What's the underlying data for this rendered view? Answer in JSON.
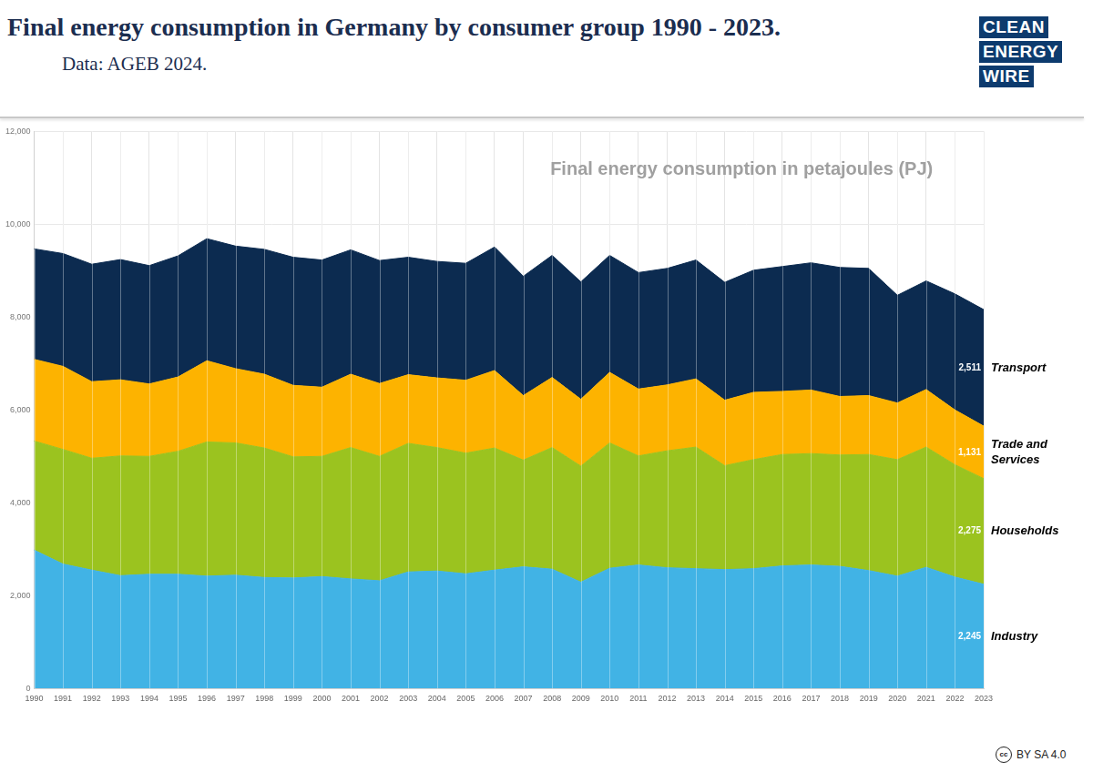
{
  "chart_data": {
    "type": "area",
    "title": "Final energy consumption in Germany by consumer group 1990 - 2023.",
    "subtitle": "Data: AGEB 2024.",
    "annotation": "Final energy consumption in petajoules (PJ)",
    "logo": [
      "CLEAN",
      "ENERGY",
      "WIRE"
    ],
    "license_icon": "cc",
    "license": "BY SA 4.0",
    "categories": [
      "1990",
      "1991",
      "1992",
      "1993",
      "1994",
      "1995",
      "1996",
      "1997",
      "1998",
      "1999",
      "2000",
      "2001",
      "2002",
      "2003",
      "2004",
      "2005",
      "2006",
      "2007",
      "2008",
      "2009",
      "2010",
      "2011",
      "2012",
      "2013",
      "2014",
      "2015",
      "2016",
      "2017",
      "2018",
      "2019",
      "2020",
      "2021",
      "2022",
      "2023"
    ],
    "ylim": [
      0,
      12000
    ],
    "yticks": [
      0,
      {
        "value": 2000,
        "label": "2,000"
      },
      {
        "value": 4000,
        "label": "4,000"
      },
      {
        "value": 6000,
        "label": "6,000"
      },
      {
        "value": 8000,
        "label": "8,000"
      },
      {
        "value": 10000,
        "label": "10,000"
      },
      {
        "value": 12000,
        "label": "12,000"
      }
    ],
    "grid": true,
    "stacked": true,
    "data_labels": true,
    "series": [
      {
        "name": "Industry",
        "color": "#41b3e5",
        "values": [
          2980,
          2680,
          2550,
          2430,
          2460,
          2460,
          2420,
          2440,
          2390,
          2380,
          2410,
          2360,
          2320,
          2510,
          2530,
          2470,
          2550,
          2620,
          2570,
          2290,
          2590,
          2660,
          2600,
          2580,
          2560,
          2580,
          2640,
          2660,
          2630,
          2540,
          2420,
          2610,
          2400,
          2245
        ],
        "value_labels": [
          null,
          null,
          null,
          null,
          null,
          null,
          null,
          null,
          null,
          null,
          null,
          null,
          null,
          null,
          null,
          null,
          null,
          null,
          null,
          null,
          null,
          null,
          null,
          null,
          null,
          null,
          null,
          null,
          null,
          null,
          null,
          null,
          null,
          "2,245"
        ]
      },
      {
        "name": "Households",
        "color": "#9bc31f",
        "values": [
          2350,
          2470,
          2410,
          2580,
          2540,
          2650,
          2890,
          2850,
          2790,
          2610,
          2590,
          2830,
          2680,
          2770,
          2660,
          2600,
          2630,
          2300,
          2620,
          2500,
          2700,
          2350,
          2520,
          2620,
          2240,
          2350,
          2400,
          2400,
          2400,
          2500,
          2510,
          2590,
          2420,
          2275
        ],
        "value_labels": [
          null,
          null,
          null,
          null,
          null,
          null,
          null,
          null,
          null,
          null,
          null,
          null,
          null,
          null,
          null,
          null,
          null,
          null,
          null,
          null,
          null,
          null,
          null,
          null,
          null,
          null,
          null,
          null,
          null,
          null,
          null,
          null,
          null,
          "2,275"
        ]
      },
      {
        "name": "Trade and Services",
        "color": "#fdb300",
        "values": [
          1760,
          1790,
          1650,
          1640,
          1560,
          1600,
          1750,
          1600,
          1590,
          1540,
          1490,
          1580,
          1570,
          1480,
          1500,
          1570,
          1670,
          1390,
          1510,
          1440,
          1520,
          1440,
          1420,
          1470,
          1410,
          1450,
          1360,
          1370,
          1260,
          1270,
          1220,
          1240,
          1180,
          1131
        ],
        "value_labels": [
          null,
          null,
          null,
          null,
          null,
          null,
          null,
          null,
          null,
          null,
          null,
          null,
          null,
          null,
          null,
          null,
          null,
          null,
          null,
          null,
          null,
          null,
          null,
          null,
          null,
          null,
          null,
          null,
          null,
          null,
          null,
          null,
          null,
          "1,131"
        ]
      },
      {
        "name": "Transport",
        "color": "#0c2b50",
        "values": [
          2380,
          2430,
          2530,
          2590,
          2550,
          2610,
          2630,
          2640,
          2690,
          2760,
          2740,
          2680,
          2650,
          2530,
          2510,
          2520,
          2660,
          2570,
          2630,
          2530,
          2520,
          2510,
          2510,
          2560,
          2540,
          2630,
          2690,
          2740,
          2780,
          2740,
          2320,
          2340,
          2500,
          2511
        ],
        "value_labels": [
          null,
          null,
          null,
          null,
          null,
          null,
          null,
          null,
          null,
          null,
          null,
          null,
          null,
          null,
          null,
          null,
          null,
          null,
          null,
          null,
          null,
          null,
          null,
          null,
          null,
          null,
          null,
          null,
          null,
          null,
          null,
          null,
          null,
          "2,511"
        ]
      }
    ]
  }
}
